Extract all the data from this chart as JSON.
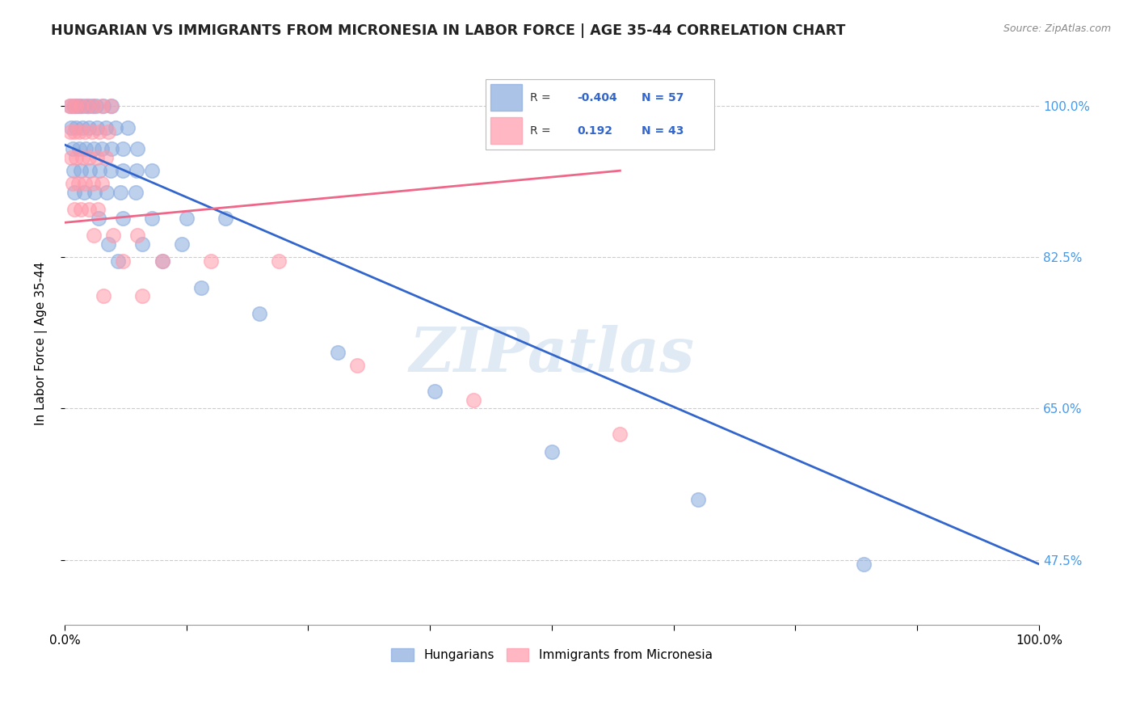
{
  "title": "HUNGARIAN VS IMMIGRANTS FROM MICRONESIA IN LABOR FORCE | AGE 35-44 CORRELATION CHART",
  "source": "Source: ZipAtlas.com",
  "ylabel": "In Labor Force | Age 35-44",
  "ytick_labels": [
    "47.5%",
    "65.0%",
    "82.5%",
    "100.0%"
  ],
  "ytick_values": [
    0.475,
    0.65,
    0.825,
    1.0
  ],
  "xlim": [
    0.0,
    1.0
  ],
  "ylim": [
    0.4,
    1.05
  ],
  "color_blue": "#88AADD",
  "color_pink": "#FF99AA",
  "color_blue_line": "#3366CC",
  "color_pink_line": "#EE6688",
  "watermark": "ZIPatlas",
  "blue_line_x0": 0.0,
  "blue_line_y0": 0.955,
  "blue_line_x1": 1.0,
  "blue_line_y1": 0.47,
  "pink_line_x0": 0.0,
  "pink_line_y0": 0.865,
  "pink_line_x1": 0.57,
  "pink_line_y1": 0.925,
  "blue_x": [
    0.006,
    0.01,
    0.013,
    0.016,
    0.02,
    0.024,
    0.028,
    0.032,
    0.04,
    0.048,
    0.007,
    0.012,
    0.018,
    0.025,
    0.033,
    0.042,
    0.052,
    0.065,
    0.008,
    0.015,
    0.022,
    0.03,
    0.038,
    0.048,
    0.06,
    0.075,
    0.009,
    0.017,
    0.026,
    0.036,
    0.047,
    0.06,
    0.074,
    0.09,
    0.01,
    0.02,
    0.031,
    0.043,
    0.057,
    0.073,
    0.035,
    0.06,
    0.09,
    0.125,
    0.165,
    0.045,
    0.08,
    0.12,
    0.055,
    0.1,
    0.14,
    0.2,
    0.28,
    0.38,
    0.5,
    0.65,
    0.82
  ],
  "blue_y": [
    1.0,
    1.0,
    1.0,
    1.0,
    1.0,
    1.0,
    1.0,
    1.0,
    1.0,
    1.0,
    0.975,
    0.975,
    0.975,
    0.975,
    0.975,
    0.975,
    0.975,
    0.975,
    0.95,
    0.95,
    0.95,
    0.95,
    0.95,
    0.95,
    0.95,
    0.95,
    0.925,
    0.925,
    0.925,
    0.925,
    0.925,
    0.925,
    0.925,
    0.925,
    0.9,
    0.9,
    0.9,
    0.9,
    0.9,
    0.9,
    0.87,
    0.87,
    0.87,
    0.87,
    0.87,
    0.84,
    0.84,
    0.84,
    0.82,
    0.82,
    0.79,
    0.76,
    0.715,
    0.67,
    0.6,
    0.545,
    0.47
  ],
  "pink_x": [
    0.005,
    0.008,
    0.012,
    0.017,
    0.023,
    0.03,
    0.038,
    0.047,
    0.006,
    0.01,
    0.015,
    0.021,
    0.028,
    0.036,
    0.045,
    0.007,
    0.012,
    0.018,
    0.025,
    0.033,
    0.042,
    0.008,
    0.014,
    0.021,
    0.029,
    0.038,
    0.01,
    0.017,
    0.025,
    0.034,
    0.03,
    0.05,
    0.075,
    0.06,
    0.1,
    0.15,
    0.22,
    0.04,
    0.08,
    0.3,
    0.42,
    0.57
  ],
  "pink_y": [
    1.0,
    1.0,
    1.0,
    1.0,
    1.0,
    1.0,
    1.0,
    1.0,
    0.97,
    0.97,
    0.97,
    0.97,
    0.97,
    0.97,
    0.97,
    0.94,
    0.94,
    0.94,
    0.94,
    0.94,
    0.94,
    0.91,
    0.91,
    0.91,
    0.91,
    0.91,
    0.88,
    0.88,
    0.88,
    0.88,
    0.85,
    0.85,
    0.85,
    0.82,
    0.82,
    0.82,
    0.82,
    0.78,
    0.78,
    0.7,
    0.66,
    0.62
  ]
}
